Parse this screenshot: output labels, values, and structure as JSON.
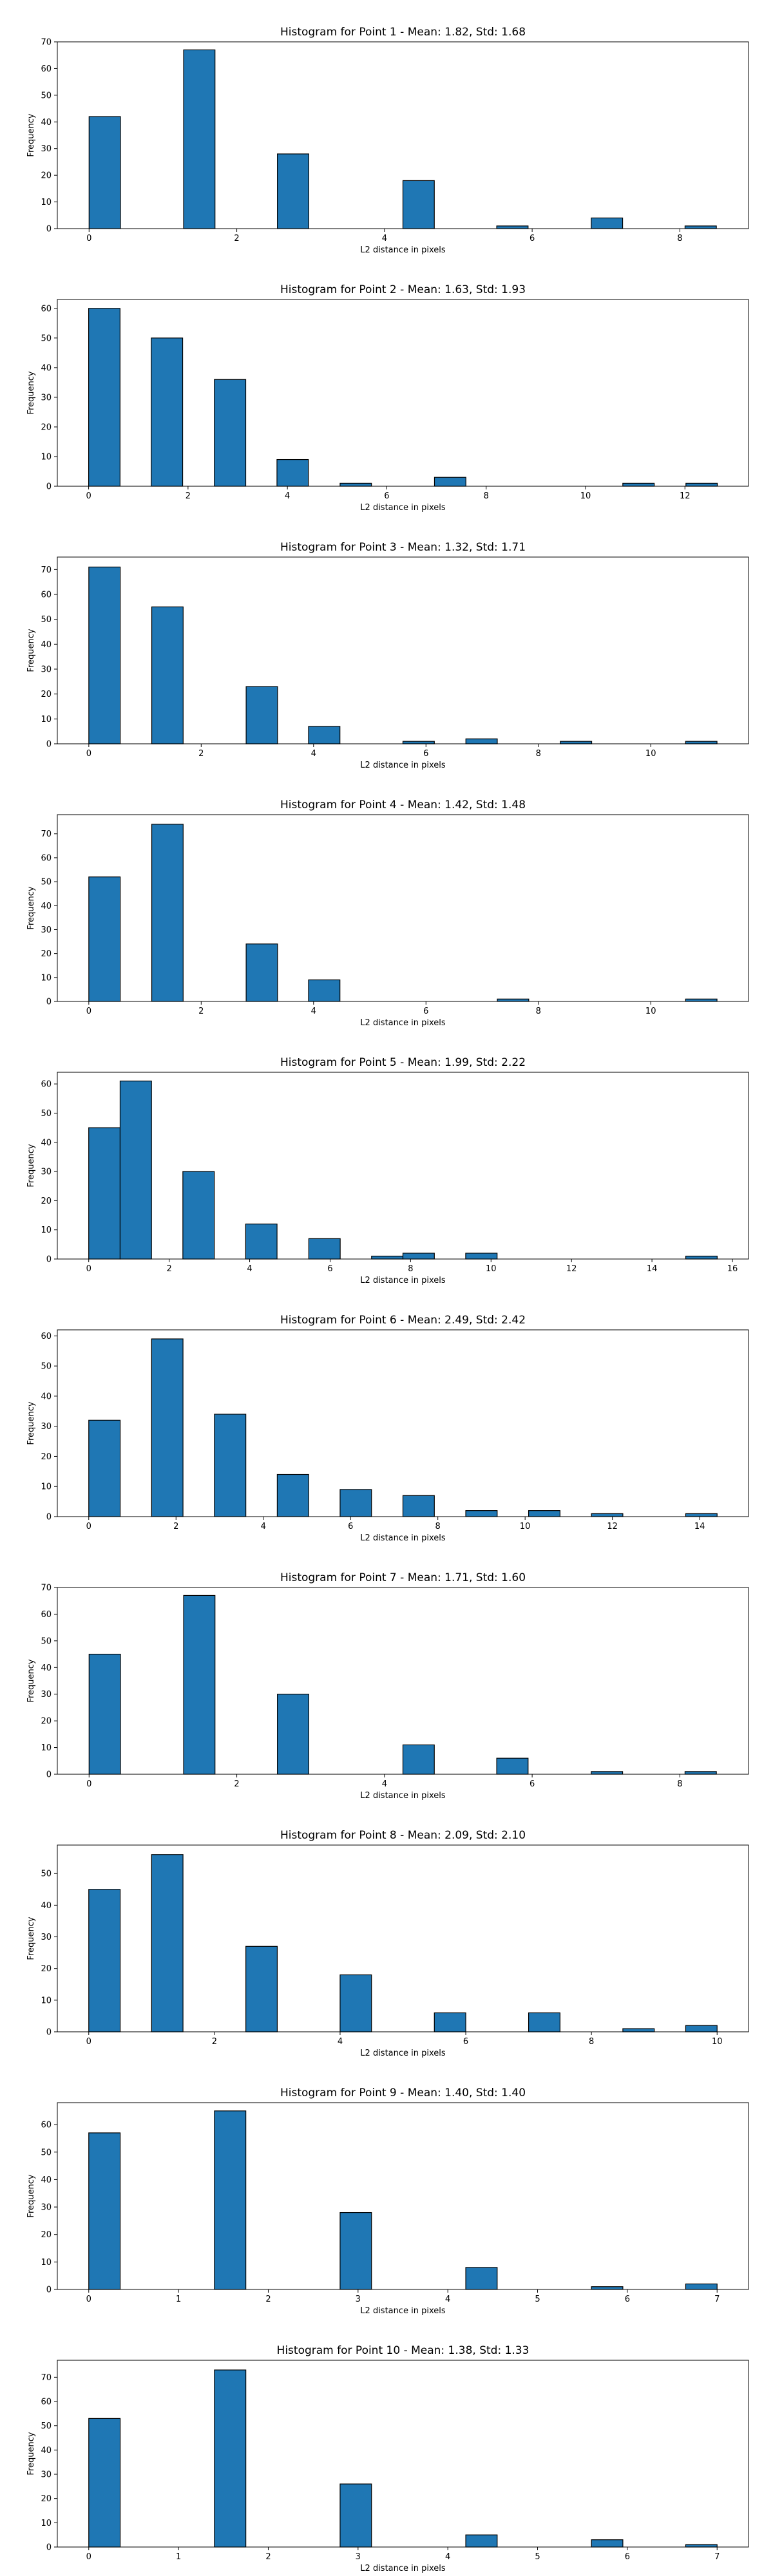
{
  "chart_data": [
    {
      "type": "bar",
      "title": "Histogram for Point 1 - Mean: 1.82, Std: 1.68",
      "xlabel": "L2 distance in pixels",
      "ylabel": "Frequency",
      "xlim": [
        -0.43,
        8.93
      ],
      "ylim": [
        0,
        70
      ],
      "xticks": [
        0,
        2,
        4,
        6,
        8
      ],
      "yticks": [
        0,
        10,
        20,
        30,
        40,
        50,
        60,
        70
      ],
      "bin_width": 0.425,
      "bars": [
        {
          "x": 0.0,
          "value": 42
        },
        {
          "x": 1.28,
          "value": 67
        },
        {
          "x": 2.55,
          "value": 28
        },
        {
          "x": 4.25,
          "value": 18
        },
        {
          "x": 5.52,
          "value": 1
        },
        {
          "x": 6.8,
          "value": 4
        },
        {
          "x": 8.07,
          "value": 1
        }
      ]
    },
    {
      "type": "bar",
      "title": "Histogram for Point 2 - Mean: 1.63, Std: 1.93",
      "xlabel": "L2 distance in pixels",
      "ylabel": "Frequency",
      "xlim": [
        -0.63,
        13.28
      ],
      "ylim": [
        0,
        63
      ],
      "xticks": [
        0,
        2,
        4,
        6,
        8,
        10,
        12
      ],
      "yticks": [
        0,
        10,
        20,
        30,
        40,
        50,
        60
      ],
      "bin_width": 0.632,
      "bars": [
        {
          "x": 0.0,
          "value": 60
        },
        {
          "x": 1.26,
          "value": 50
        },
        {
          "x": 2.53,
          "value": 36
        },
        {
          "x": 3.79,
          "value": 9
        },
        {
          "x": 5.06,
          "value": 1
        },
        {
          "x": 6.96,
          "value": 3
        },
        {
          "x": 10.75,
          "value": 1
        },
        {
          "x": 12.02,
          "value": 1
        }
      ]
    },
    {
      "type": "bar",
      "title": "Histogram for Point 3 - Mean: 1.32, Std: 1.71",
      "xlabel": "L2 distance in pixels",
      "ylabel": "Frequency",
      "xlim": [
        -0.56,
        11.74
      ],
      "ylim": [
        0,
        75
      ],
      "xticks": [
        0,
        2,
        4,
        6,
        8,
        10
      ],
      "yticks": [
        0,
        10,
        20,
        30,
        40,
        50,
        60,
        70
      ],
      "bin_width": 0.559,
      "bars": [
        {
          "x": 0.0,
          "value": 71
        },
        {
          "x": 1.12,
          "value": 55
        },
        {
          "x": 2.8,
          "value": 23
        },
        {
          "x": 3.91,
          "value": 7
        },
        {
          "x": 5.59,
          "value": 1
        },
        {
          "x": 6.71,
          "value": 2
        },
        {
          "x": 8.39,
          "value": 1
        },
        {
          "x": 10.62,
          "value": 1
        }
      ]
    },
    {
      "type": "bar",
      "title": "Histogram for Point 4 - Mean: 1.42, Std: 1.48",
      "xlabel": "L2 distance in pixels",
      "ylabel": "Frequency",
      "xlim": [
        -0.56,
        11.74
      ],
      "ylim": [
        0,
        78
      ],
      "xticks": [
        0,
        2,
        4,
        6,
        8,
        10
      ],
      "yticks": [
        0,
        10,
        20,
        30,
        40,
        50,
        60,
        70
      ],
      "bin_width": 0.559,
      "bars": [
        {
          "x": 0.0,
          "value": 52
        },
        {
          "x": 1.12,
          "value": 74
        },
        {
          "x": 2.8,
          "value": 24
        },
        {
          "x": 3.91,
          "value": 9
        },
        {
          "x": 7.27,
          "value": 1
        },
        {
          "x": 10.62,
          "value": 1
        }
      ]
    },
    {
      "type": "bar",
      "title": "Histogram for Point 5 - Mean: 1.99, Std: 2.22",
      "xlabel": "L2 distance in pixels",
      "ylabel": "Frequency",
      "xlim": [
        -0.78,
        16.4
      ],
      "ylim": [
        0,
        64
      ],
      "xticks": [
        0,
        2,
        4,
        6,
        8,
        10,
        12,
        14,
        16
      ],
      "yticks": [
        0,
        10,
        20,
        30,
        40,
        50,
        60
      ],
      "bin_width": 0.781,
      "bars": [
        {
          "x": 0.0,
          "value": 45
        },
        {
          "x": 0.78,
          "value": 61
        },
        {
          "x": 2.34,
          "value": 30
        },
        {
          "x": 3.9,
          "value": 12
        },
        {
          "x": 5.47,
          "value": 7
        },
        {
          "x": 7.03,
          "value": 1
        },
        {
          "x": 7.81,
          "value": 2
        },
        {
          "x": 9.37,
          "value": 2
        },
        {
          "x": 14.84,
          "value": 1
        }
      ]
    },
    {
      "type": "bar",
      "title": "Histogram for Point 6 - Mean: 2.49, Std: 2.42",
      "xlabel": "L2 distance in pixels",
      "ylabel": "Frequency",
      "xlim": [
        -0.72,
        15.12
      ],
      "ylim": [
        0,
        62
      ],
      "xticks": [
        0,
        2,
        4,
        6,
        8,
        10,
        12,
        14
      ],
      "yticks": [
        0,
        10,
        20,
        30,
        40,
        50,
        60
      ],
      "bin_width": 0.72,
      "bars": [
        {
          "x": 0.0,
          "value": 32
        },
        {
          "x": 1.44,
          "value": 59
        },
        {
          "x": 2.88,
          "value": 34
        },
        {
          "x": 4.32,
          "value": 14
        },
        {
          "x": 5.76,
          "value": 9
        },
        {
          "x": 7.2,
          "value": 7
        },
        {
          "x": 8.64,
          "value": 2
        },
        {
          "x": 10.08,
          "value": 2
        },
        {
          "x": 11.52,
          "value": 1
        },
        {
          "x": 13.68,
          "value": 1
        }
      ]
    },
    {
      "type": "bar",
      "title": "Histogram for Point 7 - Mean: 1.71, Std: 1.60",
      "xlabel": "L2 distance in pixels",
      "ylabel": "Frequency",
      "xlim": [
        -0.43,
        8.93
      ],
      "ylim": [
        0,
        70
      ],
      "xticks": [
        0,
        2,
        4,
        6,
        8
      ],
      "yticks": [
        0,
        10,
        20,
        30,
        40,
        50,
        60,
        70
      ],
      "bin_width": 0.425,
      "bars": [
        {
          "x": 0.0,
          "value": 45
        },
        {
          "x": 1.28,
          "value": 67
        },
        {
          "x": 2.55,
          "value": 30
        },
        {
          "x": 4.25,
          "value": 11
        },
        {
          "x": 5.52,
          "value": 6
        },
        {
          "x": 6.8,
          "value": 1
        },
        {
          "x": 8.07,
          "value": 1
        }
      ]
    },
    {
      "type": "bar",
      "title": "Histogram for Point 8 - Mean: 2.09, Std: 2.10",
      "xlabel": "L2 distance in pixels",
      "ylabel": "Frequency",
      "xlim": [
        -0.5,
        10.5
      ],
      "ylim": [
        0,
        59
      ],
      "xticks": [
        0,
        2,
        4,
        6,
        8,
        10
      ],
      "yticks": [
        0,
        10,
        20,
        30,
        40,
        50
      ],
      "bin_width": 0.5,
      "bars": [
        {
          "x": 0.0,
          "value": 45
        },
        {
          "x": 1.0,
          "value": 56
        },
        {
          "x": 2.5,
          "value": 27
        },
        {
          "x": 4.0,
          "value": 18
        },
        {
          "x": 5.5,
          "value": 6
        },
        {
          "x": 7.0,
          "value": 6
        },
        {
          "x": 8.5,
          "value": 1
        },
        {
          "x": 9.5,
          "value": 2
        }
      ]
    },
    {
      "type": "bar",
      "title": "Histogram for Point 9 - Mean: 1.40, Std: 1.40",
      "xlabel": "L2 distance in pixels",
      "ylabel": "Frequency",
      "xlim": [
        -0.35,
        7.35
      ],
      "ylim": [
        0,
        68
      ],
      "xticks": [
        0,
        1,
        2,
        3,
        4,
        5,
        6,
        7
      ],
      "yticks": [
        0,
        10,
        20,
        30,
        40,
        50,
        60
      ],
      "bin_width": 0.35,
      "bars": [
        {
          "x": 0.0,
          "value": 57
        },
        {
          "x": 1.4,
          "value": 65
        },
        {
          "x": 2.8,
          "value": 28
        },
        {
          "x": 4.2,
          "value": 8
        },
        {
          "x": 5.6,
          "value": 1
        },
        {
          "x": 6.65,
          "value": 2
        }
      ]
    },
    {
      "type": "bar",
      "title": "Histogram for Point 10 - Mean: 1.38, Std: 1.33",
      "xlabel": "L2 distance in pixels",
      "ylabel": "Frequency",
      "xlim": [
        -0.35,
        7.35
      ],
      "ylim": [
        0,
        77
      ],
      "xticks": [
        0,
        1,
        2,
        3,
        4,
        5,
        6,
        7
      ],
      "yticks": [
        0,
        10,
        20,
        30,
        40,
        50,
        60,
        70
      ],
      "bin_width": 0.35,
      "bars": [
        {
          "x": 0.0,
          "value": 53
        },
        {
          "x": 1.4,
          "value": 73
        },
        {
          "x": 2.8,
          "value": 26
        },
        {
          "x": 4.2,
          "value": 5
        },
        {
          "x": 5.6,
          "value": 3
        },
        {
          "x": 6.65,
          "value": 1
        }
      ]
    }
  ],
  "colors": {
    "bar_fill": "#1f77b4",
    "bar_edge": "#000000",
    "axes": "#000000"
  }
}
